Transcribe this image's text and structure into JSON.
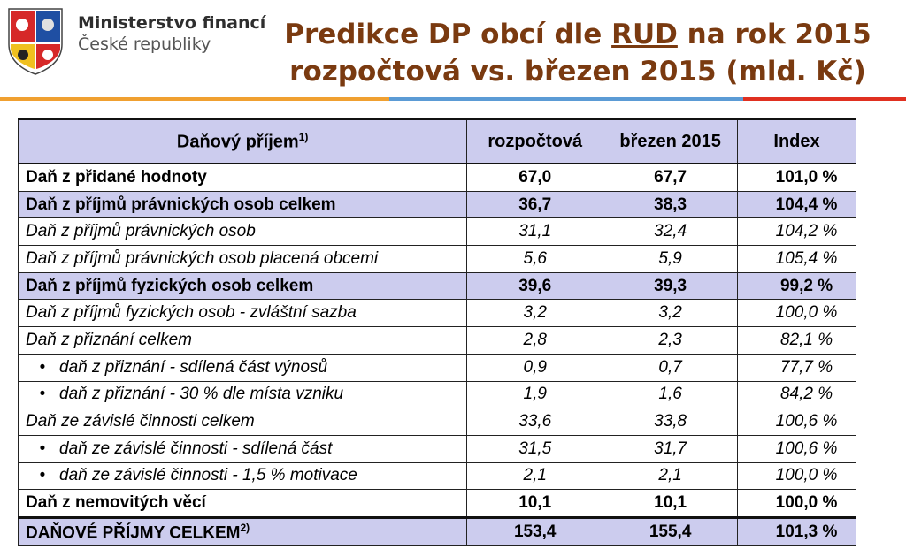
{
  "header": {
    "ministry_line1": "Ministerstvo financí",
    "ministry_line2": "České republiky",
    "title_part1": "Predikce DP obcí dle ",
    "title_rud": "RUD",
    "title_part2": " na rok 2015",
    "title_line2": "rozpočtová vs. březen 2015 (mld. Kč)"
  },
  "colors": {
    "title": "#7a3a10",
    "stripe_orange": "#f0a030",
    "stripe_blue": "#5b9bd5",
    "stripe_red": "#e03020",
    "row_highlight": "#ccccee"
  },
  "table": {
    "columns": {
      "name": "Daňový příjem",
      "name_sup": "1)",
      "budget": "rozpočtová",
      "march": "březen 2015",
      "index": "Index"
    },
    "rows": [
      {
        "label": "Daň z přidané hodnoty",
        "budget": "67,0",
        "march": "67,7",
        "index": "101,0 %"
      },
      {
        "label": "Daň z příjmů právnických osob celkem",
        "budget": "36,7",
        "march": "38,3",
        "index": "104,4 %"
      },
      {
        "label": "Daň z příjmů právnických osob",
        "budget": "31,1",
        "march": "32,4",
        "index": "104,2 %"
      },
      {
        "label": "Daň z příjmů právnických osob placená obcemi",
        "budget": "5,6",
        "march": "5,9",
        "index": "105,4 %"
      },
      {
        "label": "Daň z příjmů fyzických osob celkem",
        "budget": "39,6",
        "march": "39,3",
        "index": "99,2 %"
      },
      {
        "label": "Daň z příjmů fyzických osob - zvláštní sazba",
        "budget": "3,2",
        "march": "3,2",
        "index": "100,0 %"
      },
      {
        "label": "Daň z přiznání celkem",
        "budget": "2,8",
        "march": "2,3",
        "index": "82,1 %"
      },
      {
        "bullet": "•",
        "label": "daň z přiznání - sdílená část výnosů",
        "budget": "0,9",
        "march": "0,7",
        "index": "77,7 %"
      },
      {
        "bullet": "•",
        "label": "daň z přiznání - 30 % dle místa vzniku",
        "budget": "1,9",
        "march": "1,6",
        "index": "84,2 %"
      },
      {
        "label": "Daň ze závislé činnosti celkem",
        "budget": "33,6",
        "march": "33,8",
        "index": "100,6 %"
      },
      {
        "bullet": "•",
        "label": "daň ze závislé činnosti - sdílená část",
        "budget": "31,5",
        "march": "31,7",
        "index": "100,6 %"
      },
      {
        "bullet": "•",
        "label": "daň ze závislé činnosti - 1,5 % motivace",
        "budget": "2,1",
        "march": "2,1",
        "index": "100,0 %"
      },
      {
        "label": "Daň z nemovitých věcí",
        "budget": "10,1",
        "march": "10,1",
        "index": "100,0 %"
      }
    ],
    "total": {
      "label": "DAŇOVÉ PŘÍJMY CELKEM",
      "label_sup": "2)",
      "budget": "153,4",
      "march": "155,4",
      "index": "101,3 %"
    }
  }
}
